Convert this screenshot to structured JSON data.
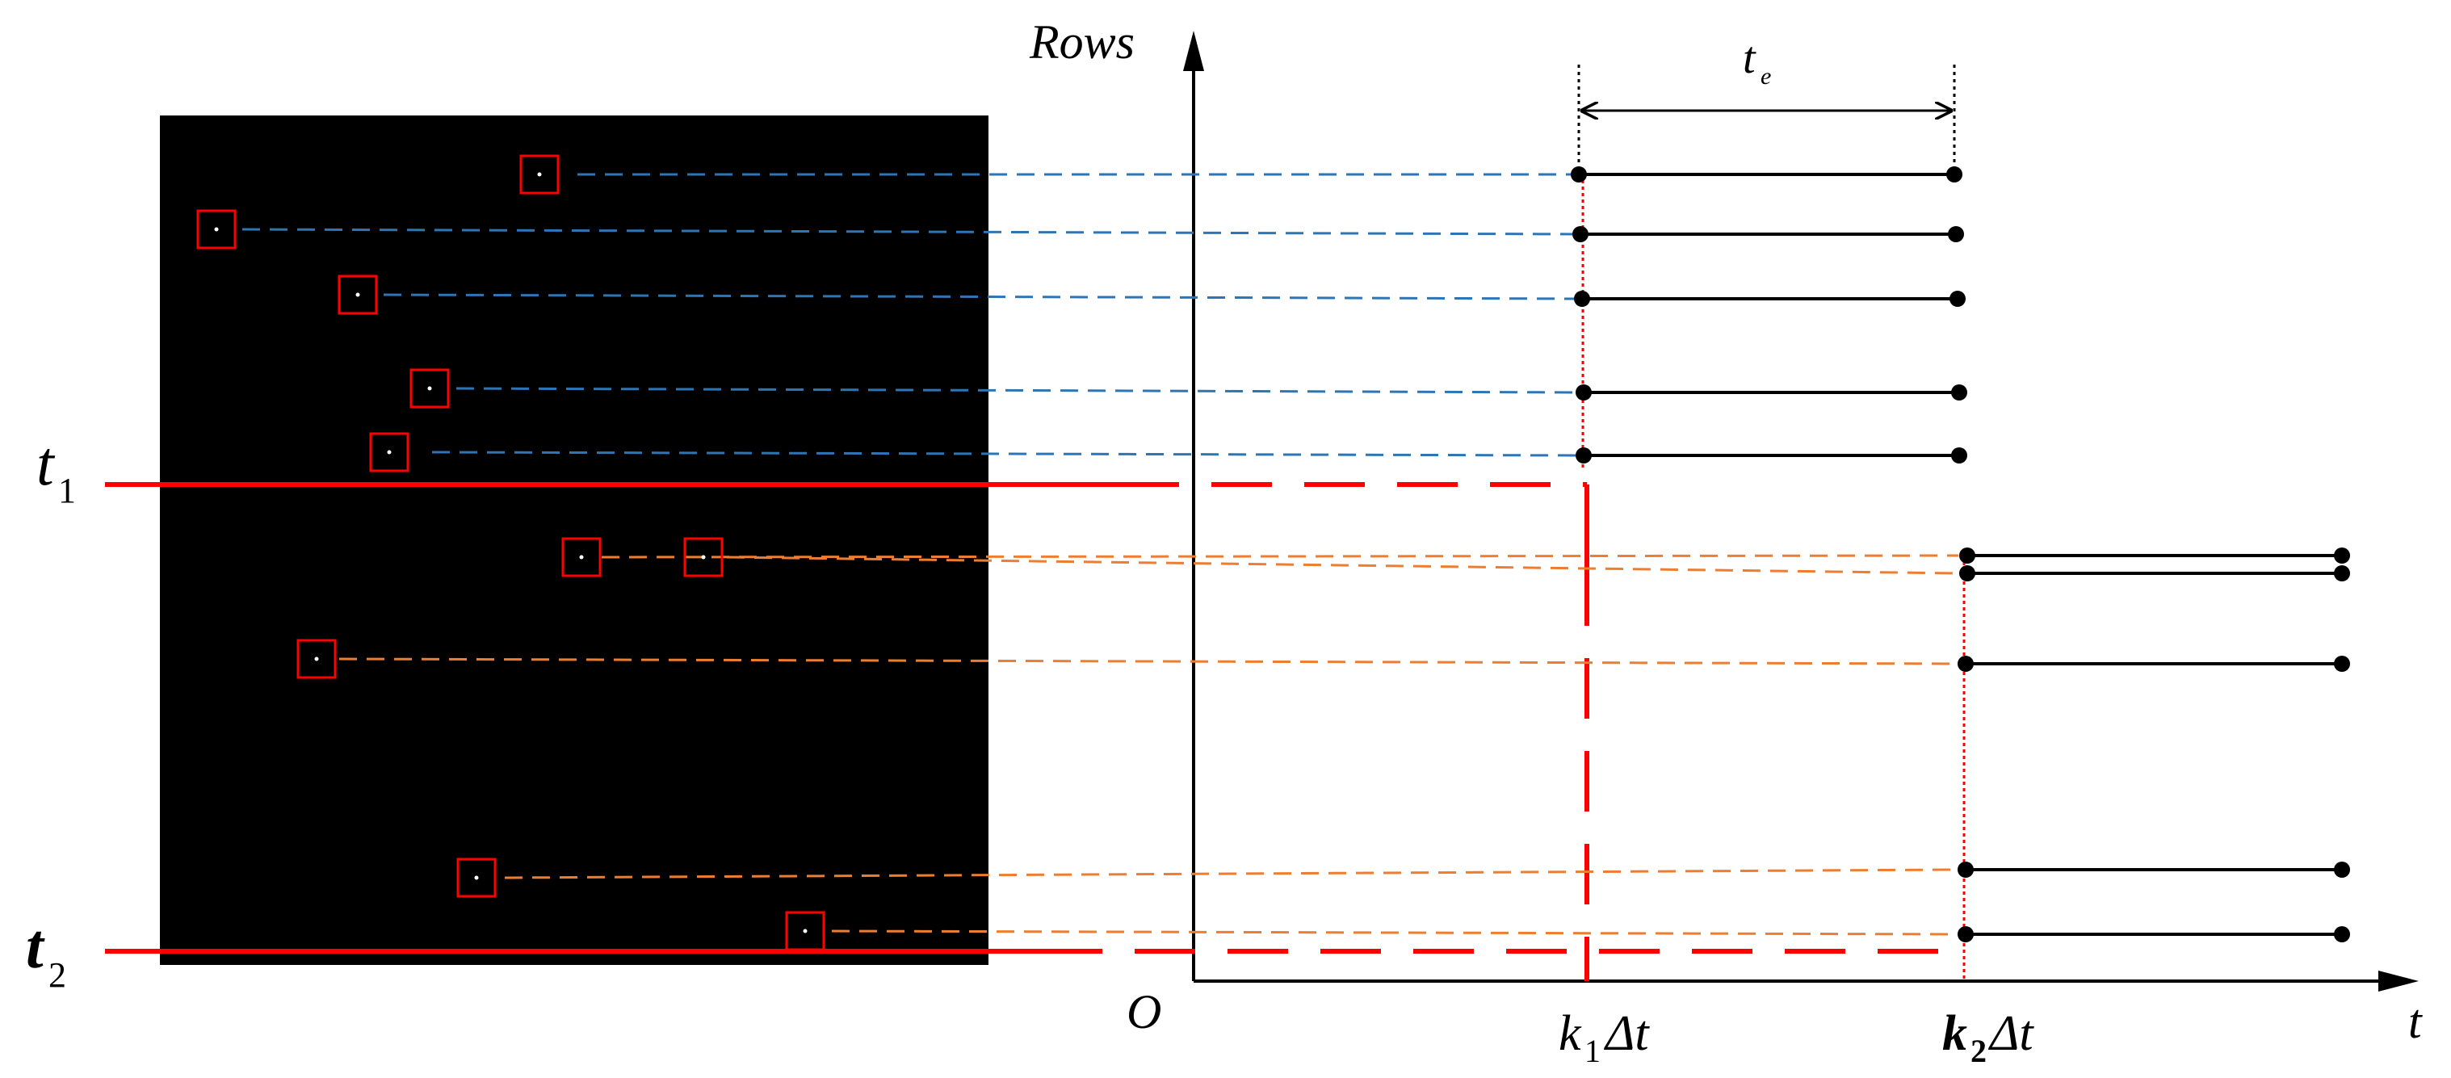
{
  "axis": {
    "y_label": "Rows",
    "origin_label": "O",
    "x_label": "t",
    "exposure_label": "t",
    "exposure_sub": "e"
  },
  "times": {
    "t1": {
      "main": "t",
      "sub": "1"
    },
    "t2": {
      "main": "t",
      "sub": "2"
    },
    "k1": {
      "k": "k",
      "sub": "1",
      "delta": "Δt"
    },
    "k2": {
      "k": "k",
      "sub": "2",
      "delta": "Δt"
    }
  },
  "colors": {
    "group1": "#2e75b6",
    "group2": "#ed7d31",
    "boundary": "#ff0000",
    "box": "#ff0000",
    "sensor": "#000000",
    "marker": "#000000"
  },
  "stars": [
    {
      "label": "star1",
      "group": 1
    },
    {
      "label": "star2",
      "group": 1
    },
    {
      "label": "star3",
      "group": 1
    },
    {
      "label": "star4",
      "group": 1
    },
    {
      "label": "star5",
      "group": 1
    },
    {
      "label": "star6",
      "group": 2
    },
    {
      "label": "star7",
      "group": 2
    },
    {
      "label": "star8",
      "group": 2
    },
    {
      "label": "star9",
      "group": 2
    },
    {
      "label": "star10",
      "group": 2
    }
  ]
}
